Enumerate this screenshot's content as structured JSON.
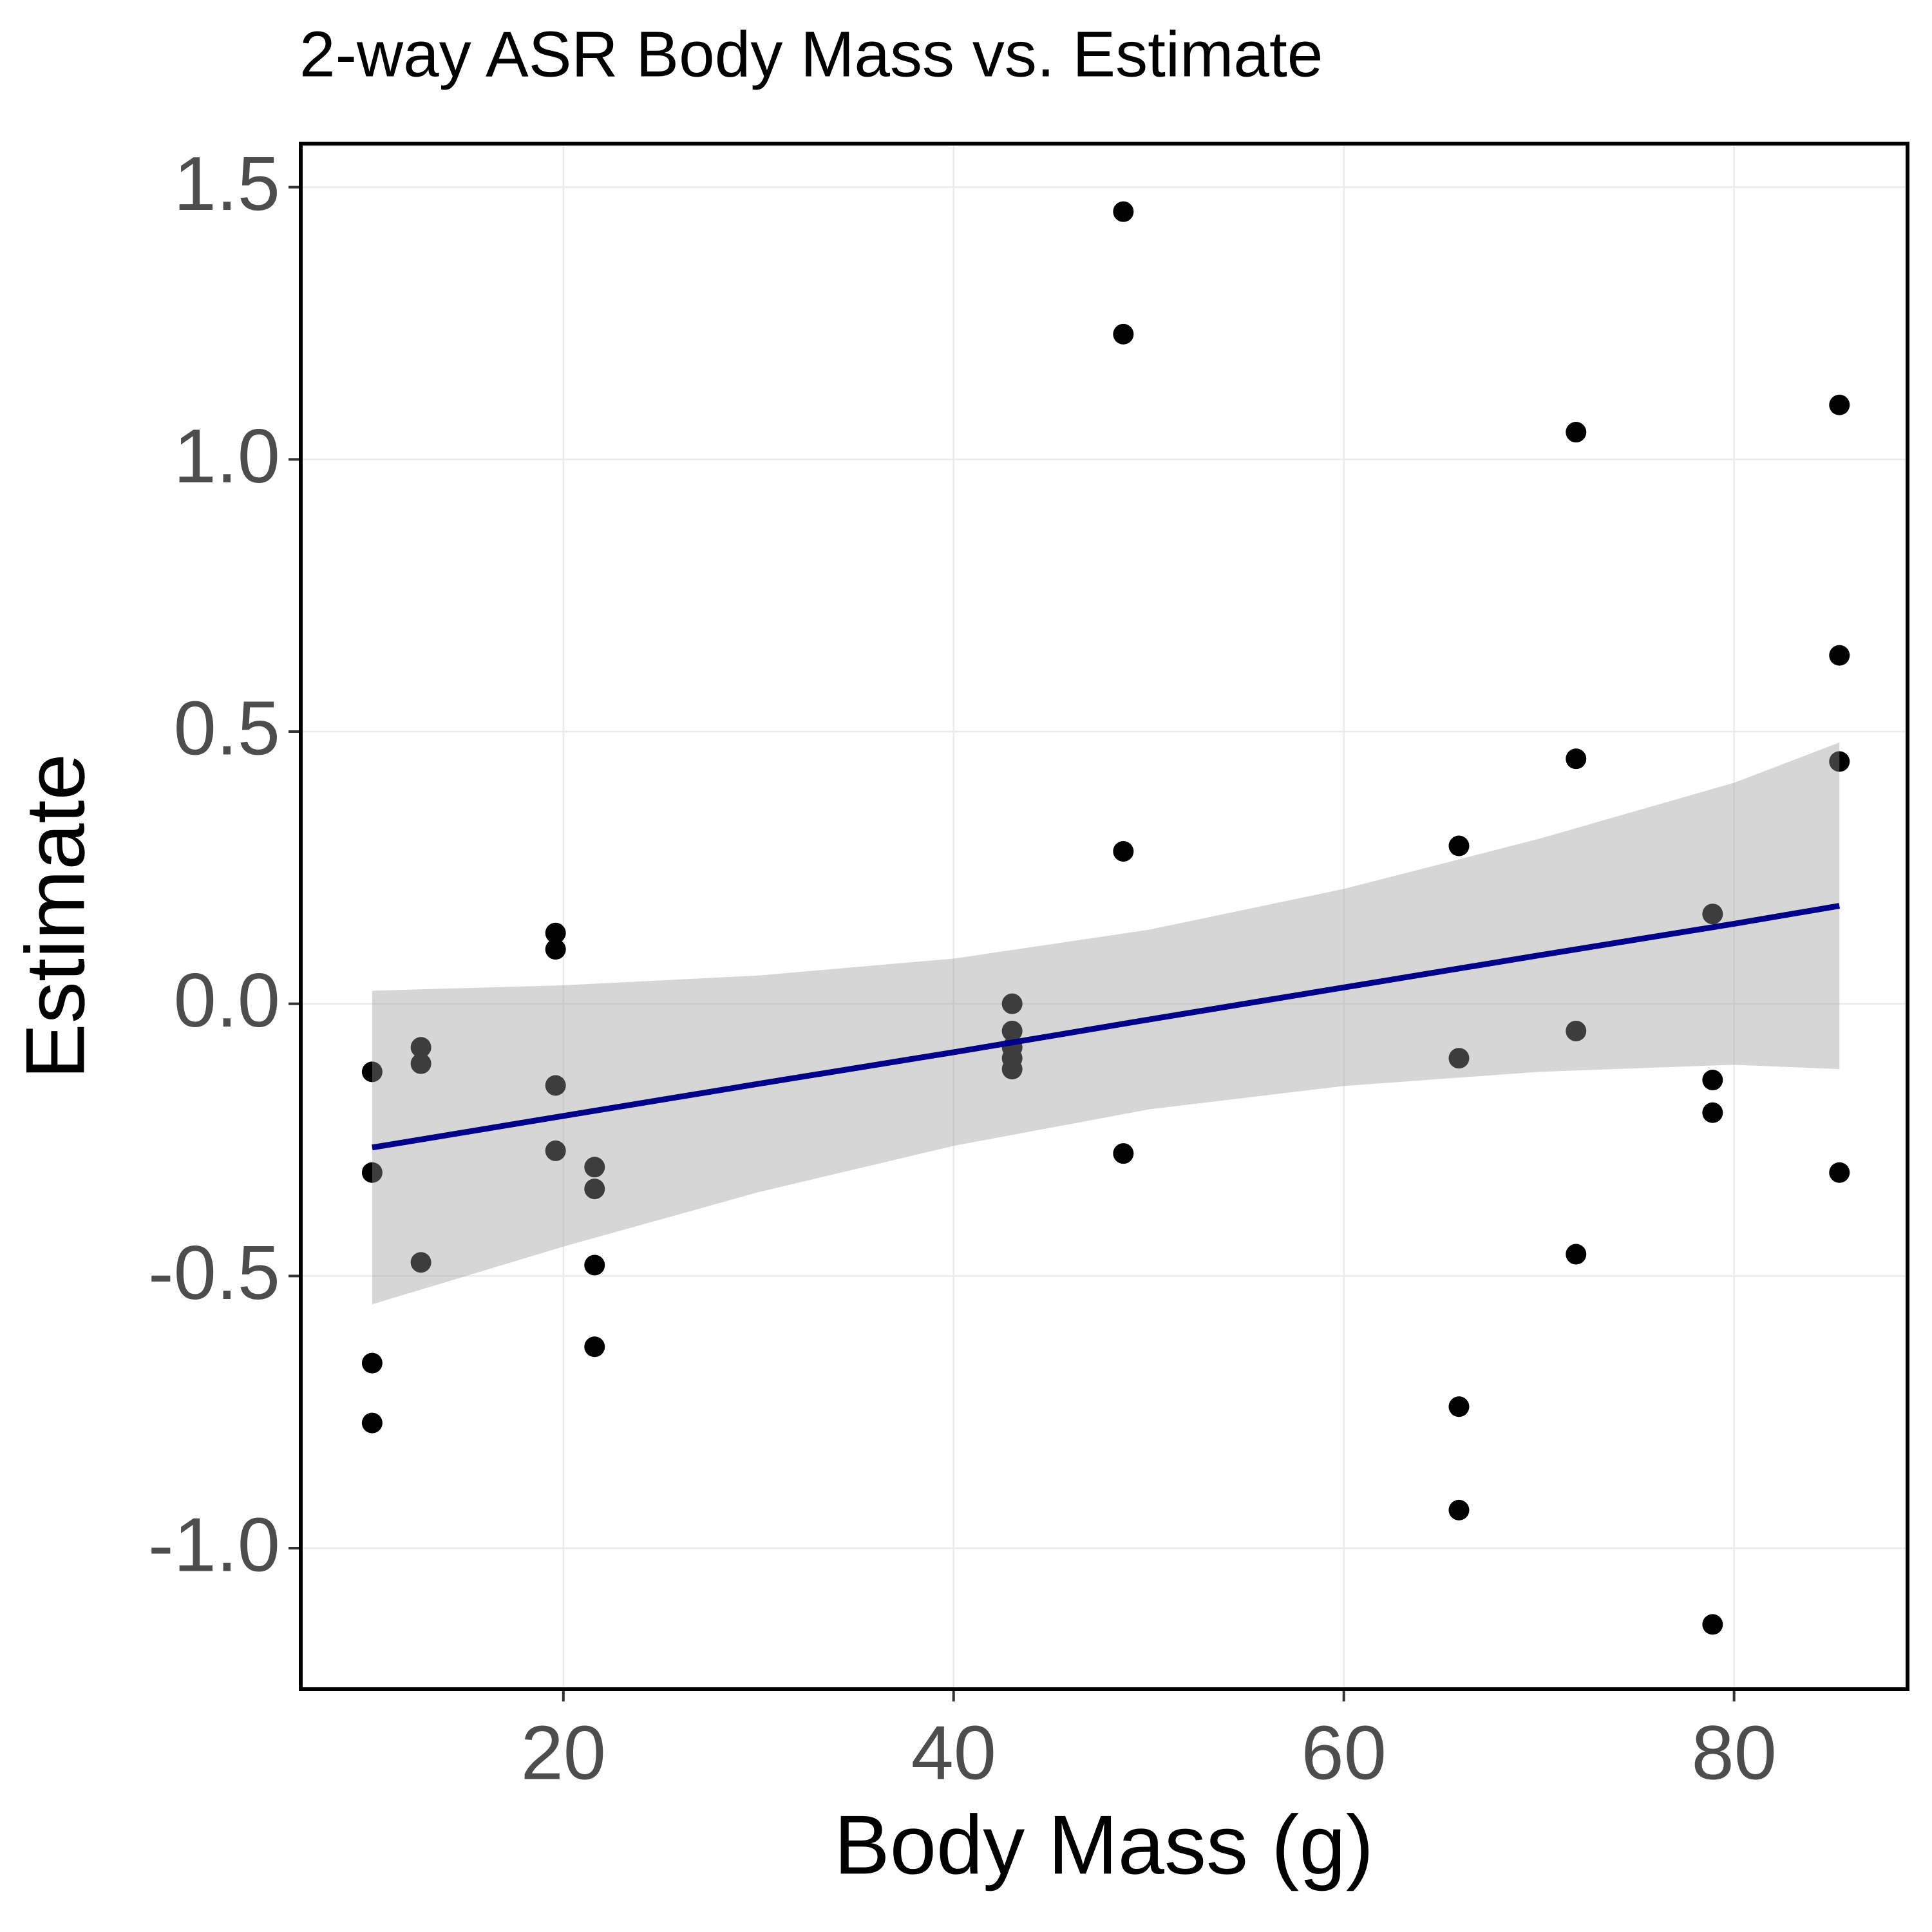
{
  "chart_data": {
    "type": "scatter",
    "title": "2-way ASR Body Mass vs. Estimate",
    "x_label": "Body Mass (g)",
    "y_label": "Estimate",
    "xlim": [
      6.54,
      88.89
    ],
    "ylim": [
      -1.259,
      1.58
    ],
    "xticks": [
      20,
      40,
      60,
      80
    ],
    "yticks": [
      {
        "value": -1,
        "label": "-1.0"
      },
      {
        "value": -0.5,
        "label": "-0.5"
      },
      {
        "value": 0,
        "label": "0.0"
      },
      {
        "value": 0.5,
        "label": "0.5"
      },
      {
        "value": 1,
        "label": "1.0"
      },
      {
        "value": 1.5,
        "label": "1.5"
      }
    ],
    "grid": true,
    "series": [
      {
        "color": "#000000",
        "x": [
          10.2,
          10.2,
          10.2,
          10.2,
          12.7,
          12.7,
          12.7,
          19.6,
          19.6,
          19.6,
          19.6,
          21.6,
          21.6,
          21.6,
          21.6,
          43.0,
          43.0,
          43.0,
          43.0,
          43.0,
          48.7,
          48.7,
          48.7,
          48.7,
          65.9,
          65.9,
          65.9,
          65.9,
          71.9,
          71.9,
          71.9,
          71.9,
          78.9,
          78.9,
          78.9,
          78.9,
          85.4,
          85.4,
          85.4,
          85.4
        ],
        "values": [
          -0.125,
          -0.31,
          -0.66,
          -0.77,
          -0.08,
          -0.11,
          -0.475,
          0.13,
          0.1,
          -0.15,
          -0.27,
          -0.3,
          -0.34,
          -0.48,
          -0.63,
          0,
          -0.05,
          -0.08,
          -0.1,
          -0.12,
          1.455,
          1.23,
          0.28,
          -0.275,
          0.29,
          -0.1,
          -0.74,
          -0.93,
          1.05,
          0.45,
          -0.05,
          -0.46,
          0.165,
          -0.14,
          -0.2,
          -1.14,
          1.1,
          0.64,
          0.445,
          -0.31
        ]
      }
    ],
    "fit": {
      "color": "#00008b",
      "band_color": "#999999",
      "x": [
        10.2,
        20,
        30,
        40,
        50,
        60,
        70,
        80,
        85.4
      ],
      "y": [
        -0.264,
        -0.206,
        -0.147,
        -0.089,
        -0.029,
        0.03,
        0.089,
        0.147,
        0.18
      ],
      "upper": [
        0.024,
        0.034,
        0.052,
        0.083,
        0.136,
        0.211,
        0.303,
        0.406,
        0.48
      ],
      "lower": [
        -0.552,
        -0.446,
        -0.346,
        -0.261,
        -0.194,
        -0.151,
        -0.125,
        -0.112,
        -0.12
      ]
    }
  }
}
